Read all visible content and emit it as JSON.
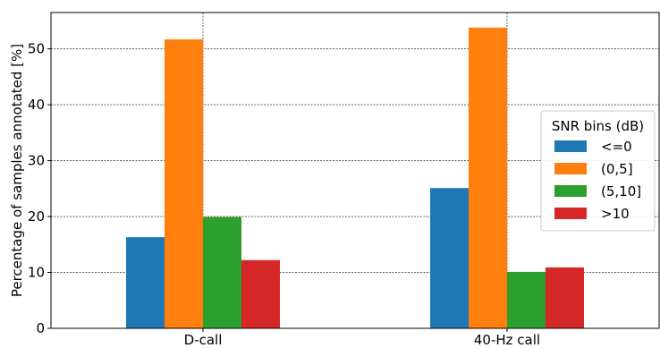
{
  "chart_data": {
    "type": "bar",
    "categories": [
      "D-call",
      "40-Hz call"
    ],
    "ylabel": "Percentage of samples annotated [%]",
    "xlabel": "",
    "ylim": [
      0,
      56.5
    ],
    "yticks": [
      0,
      10,
      20,
      30,
      40,
      50
    ],
    "grid": true,
    "legend": {
      "title": "SNR bins (dB)",
      "placement": "center-right"
    },
    "series": [
      {
        "name": "<=0",
        "color": "#1f77b4",
        "values": [
          16.3,
          25.1
        ]
      },
      {
        "name": "(0,5]",
        "color": "#ff7f0e",
        "values": [
          51.7,
          53.8
        ]
      },
      {
        "name": "(5,10]",
        "color": "#2ca02c",
        "values": [
          19.9,
          10.1
        ]
      },
      {
        "name": ">10",
        "color": "#d62728",
        "values": [
          12.2,
          10.9
        ]
      }
    ]
  }
}
